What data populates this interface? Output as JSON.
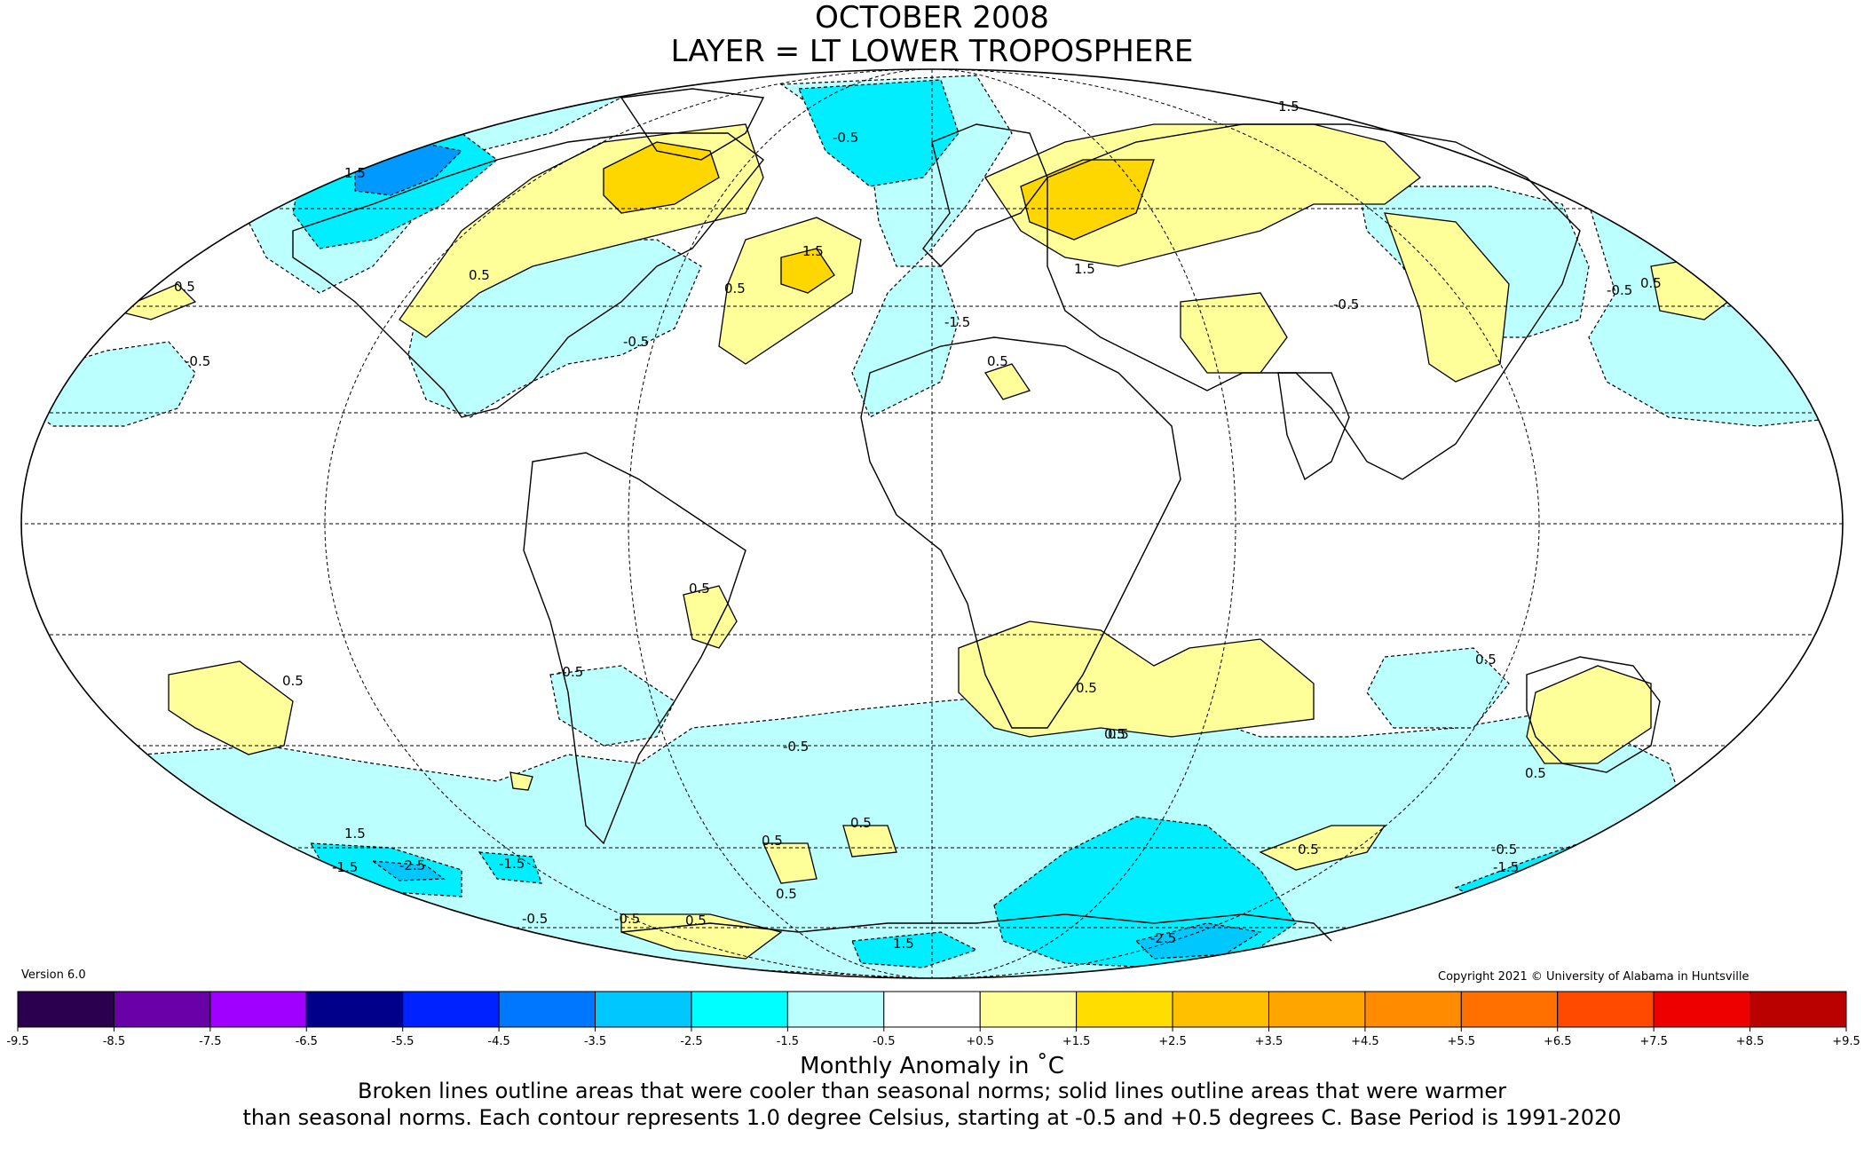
{
  "title": {
    "line1": "OCTOBER 2008",
    "line2": "LAYER = LT LOWER TROPOSPHERE"
  },
  "version": "Version 6.0",
  "copyright": "Copyright 2021 © University of Alabama in Huntsville",
  "colors": {
    "warm_contour_fill": "#ffff99",
    "warm2_fill": "#ffd700",
    "cool_contour_fill": "#bbffff",
    "cool2_fill": "#00eeff",
    "cool3_fill": "#00c8ff",
    "cool4_fill": "#0088ff"
  },
  "contour_labels": [
    {
      "text": "1.5"
    },
    {
      "text": "0.5"
    },
    {
      "text": "-0.5"
    },
    {
      "text": "1.5"
    },
    {
      "text": "0.5"
    },
    {
      "text": "-0.5"
    },
    {
      "text": "-0.5"
    },
    {
      "text": "0.5"
    },
    {
      "text": "1.5"
    },
    {
      "text": "-1.5"
    },
    {
      "text": "0.5"
    },
    {
      "text": "-0.5"
    },
    {
      "text": "0.5"
    },
    {
      "text": "-0.5"
    },
    {
      "text": "1.5"
    },
    {
      "text": "0.5"
    },
    {
      "text": "0.5"
    },
    {
      "text": "-0.5"
    },
    {
      "text": "0.5"
    },
    {
      "text": "0.5"
    },
    {
      "text": "0.5"
    },
    {
      "text": "-0.5"
    },
    {
      "text": "0.5"
    },
    {
      "text": "0.5"
    },
    {
      "text": "-0.5"
    },
    {
      "text": "0.5"
    },
    {
      "text": "0.5"
    },
    {
      "text": "0.5"
    },
    {
      "text": "1.5"
    },
    {
      "text": "-2.5"
    },
    {
      "text": "-1.5"
    },
    {
      "text": "-1.5"
    },
    {
      "text": "-0.5"
    },
    {
      "text": "0.5"
    },
    {
      "text": "1.5"
    },
    {
      "text": "-2.5"
    },
    {
      "text": "-0.5"
    },
    {
      "text": "-1.5"
    },
    {
      "text": "0.5"
    }
  ],
  "colorbar": {
    "bins": [
      {
        "color": "#2a004f"
      },
      {
        "color": "#6a00a8"
      },
      {
        "color": "#a000ff"
      },
      {
        "color": "#00008b"
      },
      {
        "color": "#0022ff"
      },
      {
        "color": "#0077ff"
      },
      {
        "color": "#00c8ff"
      },
      {
        "color": "#00ffff"
      },
      {
        "color": "#bbffff"
      },
      {
        "color": "#ffffff"
      },
      {
        "color": "#ffff99"
      },
      {
        "color": "#ffdd00"
      },
      {
        "color": "#ffc000"
      },
      {
        "color": "#ffa500"
      },
      {
        "color": "#ff8c00"
      },
      {
        "color": "#ff7000"
      },
      {
        "color": "#ff4a00"
      },
      {
        "color": "#ee0000"
      },
      {
        "color": "#bb0000"
      }
    ],
    "tick_labels": [
      "-9.5",
      "-8.5",
      "-7.5",
      "-6.5",
      "-5.5",
      "-4.5",
      "-3.5",
      "-2.5",
      "-1.5",
      "-0.5",
      "+0.5",
      "+1.5",
      "+2.5",
      "+3.5",
      "+4.5",
      "+5.5",
      "+6.5",
      "+7.5",
      "+8.5",
      "+9.5"
    ]
  },
  "caption": {
    "title": "Monthly Anomaly in ˚C",
    "line1": "Broken lines outline areas that were cooler than seasonal norms; solid lines outline areas that were warmer",
    "line2": "than seasonal norms. Each contour represents 1.0 degree Celsius, starting at -0.5 and +0.5 degrees C. Base Period is 1991-2020"
  }
}
